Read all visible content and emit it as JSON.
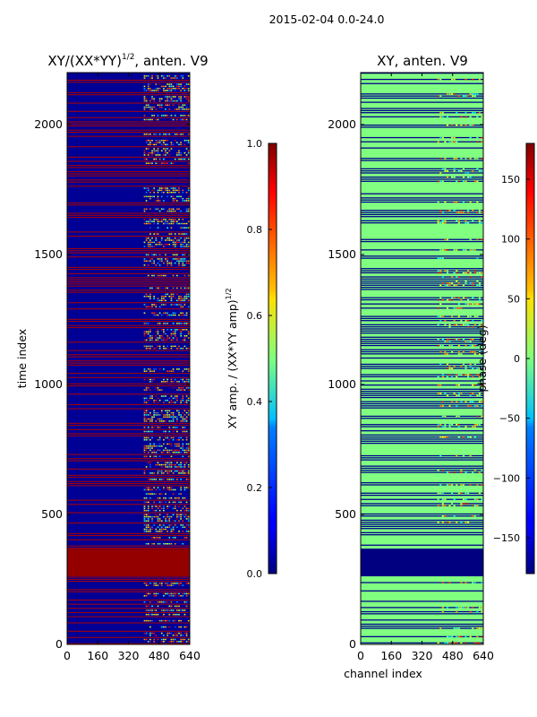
{
  "figure": {
    "suptitle": "2015-02-04 0.0-24.0"
  },
  "chart_data": [
    {
      "type": "heatmap",
      "title": "XY/(XX*YY)",
      "title_superscript": "1/2",
      "title_suffix": ", anten. V9",
      "xlabel": "",
      "ylabel": "time index",
      "xlim": [
        0,
        640
      ],
      "ylim": [
        0,
        2200
      ],
      "xticks": [
        "0",
        "160",
        "320",
        "480",
        "640"
      ],
      "yticks": [
        "0",
        "500",
        "1000",
        "1500",
        "2000"
      ],
      "ytick_values": [
        0,
        500,
        1000,
        1500,
        2000
      ],
      "xtick_values": [
        0,
        160,
        320,
        480,
        640
      ],
      "colormap": "jet",
      "colorbar": {
        "label": "XY amp. / (XX*YY amp)",
        "label_superscript": "1/2",
        "ticks": [
          "0.0",
          "0.2",
          "0.4",
          "0.6",
          "0.8",
          "1.0"
        ],
        "tick_values": [
          0.0,
          0.2,
          0.4,
          0.6,
          0.8,
          1.0
        ],
        "vmin": 0.0,
        "vmax": 1.0
      },
      "background_value": 0.02,
      "solid_block": {
        "t_start": 262,
        "t_end": 368,
        "value": 0.98
      },
      "active_channel_range": [
        400,
        640
      ],
      "full_band_rows": [
        1840,
        1230,
        180,
        160
      ],
      "colors": {
        "low": "#00007f",
        "high": "#7f0000"
      }
    },
    {
      "type": "heatmap",
      "title": "XY, anten. V9",
      "xlabel": "channel index",
      "ylabel": "",
      "xlim": [
        0,
        640
      ],
      "ylim": [
        0,
        2200
      ],
      "xticks": [
        "0",
        "160",
        "320",
        "480",
        "640"
      ],
      "yticks": [
        "0",
        "500",
        "1000",
        "1500",
        "2000"
      ],
      "ytick_values": [
        0,
        500,
        1000,
        1500,
        2000
      ],
      "xtick_values": [
        0,
        160,
        320,
        480,
        640
      ],
      "colormap": "jet",
      "colorbar": {
        "label": "phase (deg)",
        "ticks": [
          "−150",
          "−100",
          "−50",
          "0",
          "50",
          "100",
          "150"
        ],
        "tick_values": [
          -150,
          -100,
          -50,
          0,
          50,
          100,
          150
        ],
        "vmin": -180,
        "vmax": 180
      },
      "background_value": 0,
      "solid_block": {
        "t_start": 262,
        "t_end": 368,
        "value": -180
      },
      "active_channel_range": [
        400,
        640
      ],
      "colors": {
        "zero": "#7fff7f",
        "low": "#00007f"
      }
    }
  ]
}
